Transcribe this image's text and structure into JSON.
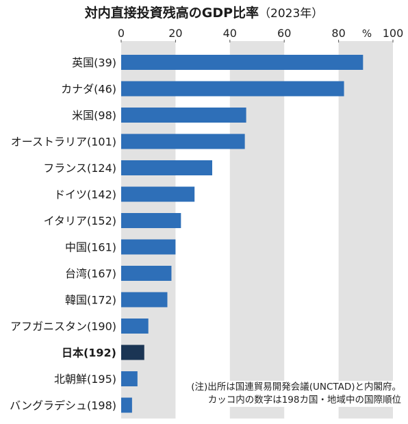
{
  "title": "対内直接投資残高のGDP比率",
  "subtitle": "（2023年）",
  "note": {
    "line1": "(注)出所は国連貿易開発会議(UNCTAD)と内閣府。",
    "line2": "カッコ内の数字は198カ国・地域中の国際順位"
  },
  "colors": {
    "bar": "#2e6fb8",
    "highlight": "#1b3554",
    "band": "#e2e2e2"
  },
  "chart_data": {
    "type": "bar",
    "orientation": "horizontal",
    "xlim": [
      0,
      100
    ],
    "ticks": [
      "0",
      "20",
      "40",
      "60",
      "80",
      "100"
    ],
    "unit_label": "%",
    "categories": [
      "英国(39)",
      "カナダ(46)",
      "米国(98)",
      "オーストラリア(101)",
      "フランス(124)",
      "ドイツ(142)",
      "イタリア(152)",
      "中国(161)",
      "台湾(167)",
      "韓国(172)",
      "アフガニスタン(190)",
      "日本(192)",
      "北朝鮮(195)",
      "バングラデシュ(198)"
    ],
    "values": [
      89,
      82,
      46,
      45.5,
      33.5,
      27,
      22,
      20,
      18.5,
      17,
      10,
      8.5,
      6,
      4
    ],
    "highlight": "日本(192)",
    "grid": "alternating bands"
  }
}
